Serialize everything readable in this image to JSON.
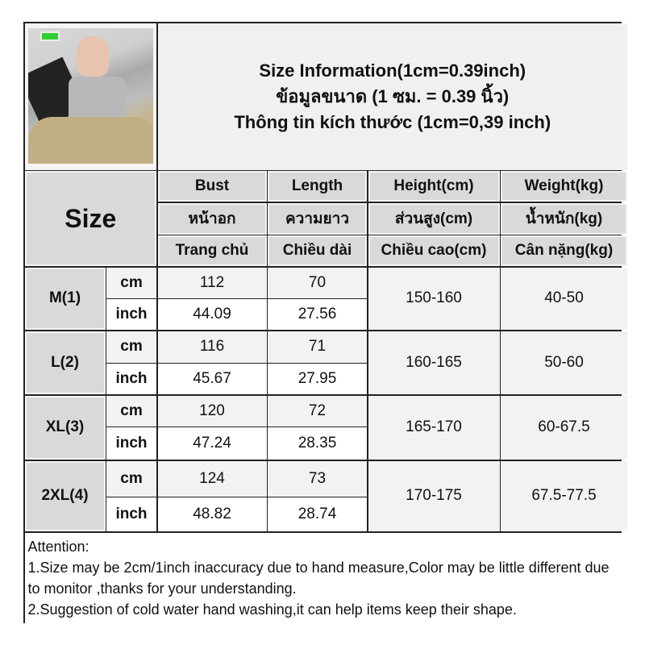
{
  "title": {
    "line1": "Size Information(1cm=0.39inch)",
    "line2": "ข้อมูลขนาด (1 ซม. = 0.39 นิ้ว)",
    "line3": "Thông tin kích thước (1cm=0,39 inch)"
  },
  "header": {
    "size": "Size",
    "columns": [
      {
        "en": "Bust",
        "th": "หน้าอก",
        "vi": "Trang chủ"
      },
      {
        "en": "Length",
        "th": "ความยาว",
        "vi": "Chiều dài"
      },
      {
        "en": "Height(cm)",
        "th": "ส่วนสูง(cm)",
        "vi": "Chiều cao(cm)"
      },
      {
        "en": "Weight(kg)",
        "th": "น้ำหนัก(kg)",
        "vi": "Cân nặng(kg)"
      }
    ]
  },
  "rows": [
    {
      "size": "M(1)",
      "cm_label": "cm",
      "inch_label": "inch",
      "bust_cm": "112",
      "length_cm": "70",
      "bust_in": "44.09",
      "length_in": "27.56",
      "height": "150-160",
      "weight": "40-50"
    },
    {
      "size": "L(2)",
      "cm_label": "cm",
      "inch_label": "inch",
      "bust_cm": "116",
      "length_cm": "71",
      "bust_in": "45.67",
      "length_in": "27.95",
      "height": "160-165",
      "weight": "50-60"
    },
    {
      "size": "XL(3)",
      "cm_label": "cm",
      "inch_label": "inch",
      "bust_cm": "120",
      "length_cm": "72",
      "bust_in": "47.24",
      "length_in": "28.35",
      "height": "165-170",
      "weight": "60-67.5"
    },
    {
      "size": "2XL(4)",
      "cm_label": "cm",
      "inch_label": "inch",
      "bust_cm": "124",
      "length_cm": "73",
      "bust_in": "48.82",
      "length_in": "28.74",
      "height": "170-175",
      "weight": "67.5-77.5"
    }
  ],
  "attention": {
    "heading": "Attention:",
    "line1": "1.Size may be 2cm/1inch inaccuracy due to hand measure,Color may be little different due to monitor ,thanks for your understanding.",
    "line2": "2.Suggestion of cold water hand washing,it can help items keep their shape."
  }
}
